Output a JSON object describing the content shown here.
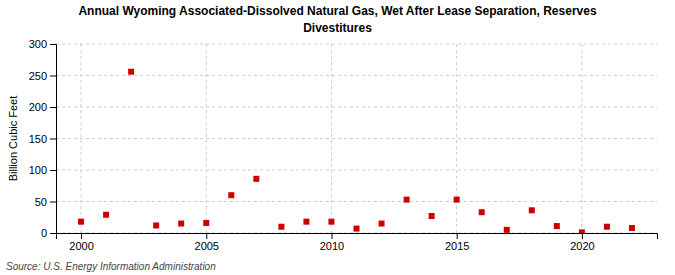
{
  "chart_data": {
    "type": "scatter",
    "title": "Annual Wyoming Associated-Dissolved Natural Gas, Wet After Lease Separation, Reserves",
    "subtitle": "Divestitures",
    "ylabel": "Billion Cubic Feet",
    "annotation": "Source: U.S. Energy Information Administration",
    "x": [
      2000,
      2001,
      2002,
      2003,
      2004,
      2005,
      2006,
      2007,
      2008,
      2009,
      2010,
      2011,
      2012,
      2013,
      2014,
      2015,
      2016,
      2017,
      2018,
      2019,
      2020,
      2021,
      2022
    ],
    "values": [
      18,
      29,
      256,
      12,
      15,
      16,
      60,
      86,
      10,
      18,
      18,
      7,
      15,
      53,
      27,
      53,
      33,
      5,
      36,
      11,
      1,
      10,
      8
    ],
    "color": "#cc0000",
    "marker": "square",
    "xlim": [
      1999,
      2023
    ],
    "xticks": [
      2000,
      2005,
      2010,
      2015,
      2020
    ],
    "ylim": [
      0,
      300
    ],
    "yticks": [
      0,
      50,
      100,
      150,
      200,
      250,
      300
    ],
    "grid": true
  }
}
